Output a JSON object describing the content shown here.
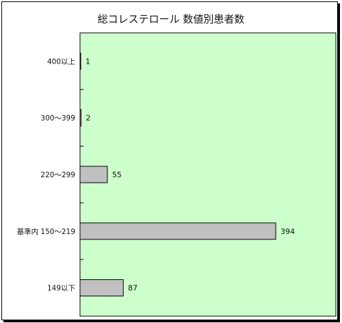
{
  "chart_data": {
    "type": "bar",
    "orientation": "horizontal",
    "title": "総コレステロール 数値別患者数",
    "categories": [
      "400以上",
      "300〜399",
      "220〜299",
      "基準内 150〜219",
      "149以下"
    ],
    "values": [
      1,
      2,
      55,
      394,
      87
    ],
    "xlim": [
      0,
      515
    ],
    "grid": false,
    "colors": {
      "plot_background": "#ccffcc",
      "bar_fill": "#c0c0c0",
      "bar_stroke": "#000000"
    }
  }
}
